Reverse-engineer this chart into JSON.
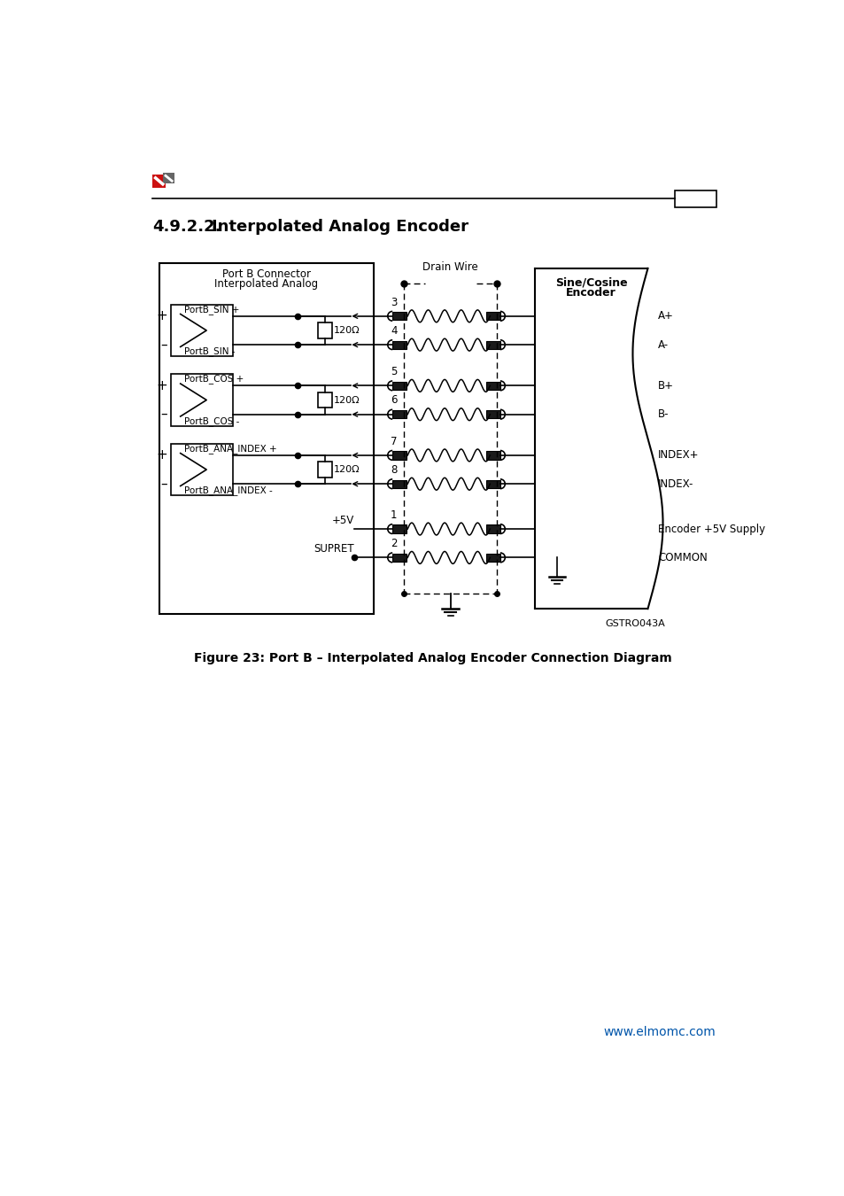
{
  "title_number": "4.9.2.2.",
  "title_text": "Interpolated Analog Encoder",
  "figure_caption": "Figure 23: Port B – Interpolated Analog Encoder Connection Diagram",
  "website": "www.elmomc.com",
  "port_box_label1": "Port B Connector",
  "port_box_label2": "Interpolated Analog",
  "encoder_label1": "Sine/Cosine",
  "encoder_label2": "Encoder",
  "drain_wire_label": "Drain Wire",
  "gstro_label": "GSTRO043A",
  "signal_groups": [
    {
      "lp": "PortB_SIN +",
      "lm": "PortB_SIN -",
      "res": "120Ω",
      "pins": [
        3,
        4
      ],
      "enc": [
        "A+",
        "A-"
      ]
    },
    {
      "lp": "PortB_COS +",
      "lm": "PortB_COS -",
      "res": "120Ω",
      "pins": [
        5,
        6
      ],
      "enc": [
        "B+",
        "B-"
      ]
    },
    {
      "lp": "PortB_ANA_INDEX +",
      "lm": "PortB_ANA_INDEX -",
      "res": "120Ω",
      "pins": [
        7,
        8
      ],
      "enc": [
        "INDEX+",
        "INDEX-"
      ]
    }
  ],
  "power_sigs": [
    {
      "label": "+5V",
      "pin": 1,
      "enc": "Encoder +5V Supply",
      "dot": false
    },
    {
      "label": "SUPRET",
      "pin": 2,
      "enc": "COMMON",
      "dot": true
    }
  ],
  "background": "#ffffff",
  "line_color": "#000000",
  "logo_red": "#cc1111",
  "logo_gray": "#666666",
  "website_color": "#0055aa"
}
